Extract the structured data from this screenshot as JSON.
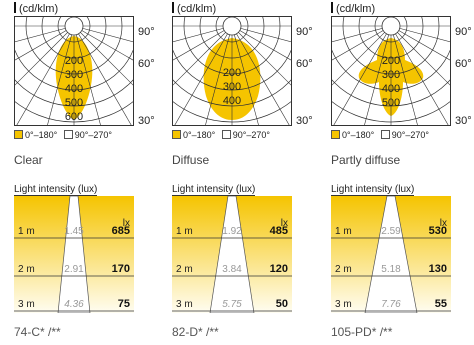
{
  "legend": {
    "range1": "0°–180°",
    "range2": "90°–270°"
  },
  "unit_label": "(cd/klm)",
  "intensity_symbol": "I",
  "angle_labels": {
    "a90": "90°",
    "a60": "60°",
    "a30": "30°"
  },
  "light_intensity_title": "Light intensity (lux)",
  "lux_unit": "lx",
  "colors": {
    "yellow": "#f5c400",
    "light_yellow": "#fde8a0",
    "grid": "#333333"
  },
  "products": [
    {
      "name": "Clear",
      "code": "74-C* /**",
      "polar_rings": [
        "200",
        "300",
        "400",
        "500",
        "600"
      ],
      "lux_rows": [
        {
          "distance": "1 m",
          "diameter": "1.45",
          "lux": "685"
        },
        {
          "distance": "2 m",
          "diameter": "2.91",
          "lux": "170"
        },
        {
          "distance": "3 m",
          "diameter": "4.36",
          "lux": "75"
        }
      ]
    },
    {
      "name": "Diffuse",
      "code": "82-D* /**",
      "polar_rings": [
        "200",
        "300",
        "400"
      ],
      "lux_rows": [
        {
          "distance": "1 m",
          "diameter": "1.92",
          "lux": "485"
        },
        {
          "distance": "2 m",
          "diameter": "3.84",
          "lux": "120"
        },
        {
          "distance": "3 m",
          "diameter": "5.75",
          "lux": "50"
        }
      ]
    },
    {
      "name": "Partly diffuse",
      "code": "105-PD* /**",
      "polar_rings": [
        "200",
        "300",
        "400",
        "500"
      ],
      "lux_rows": [
        {
          "distance": "1 m",
          "diameter": "2.59",
          "lux": "530"
        },
        {
          "distance": "2 m",
          "diameter": "5.18",
          "lux": "130"
        },
        {
          "distance": "3 m",
          "diameter": "7.76",
          "lux": "55"
        }
      ]
    }
  ]
}
